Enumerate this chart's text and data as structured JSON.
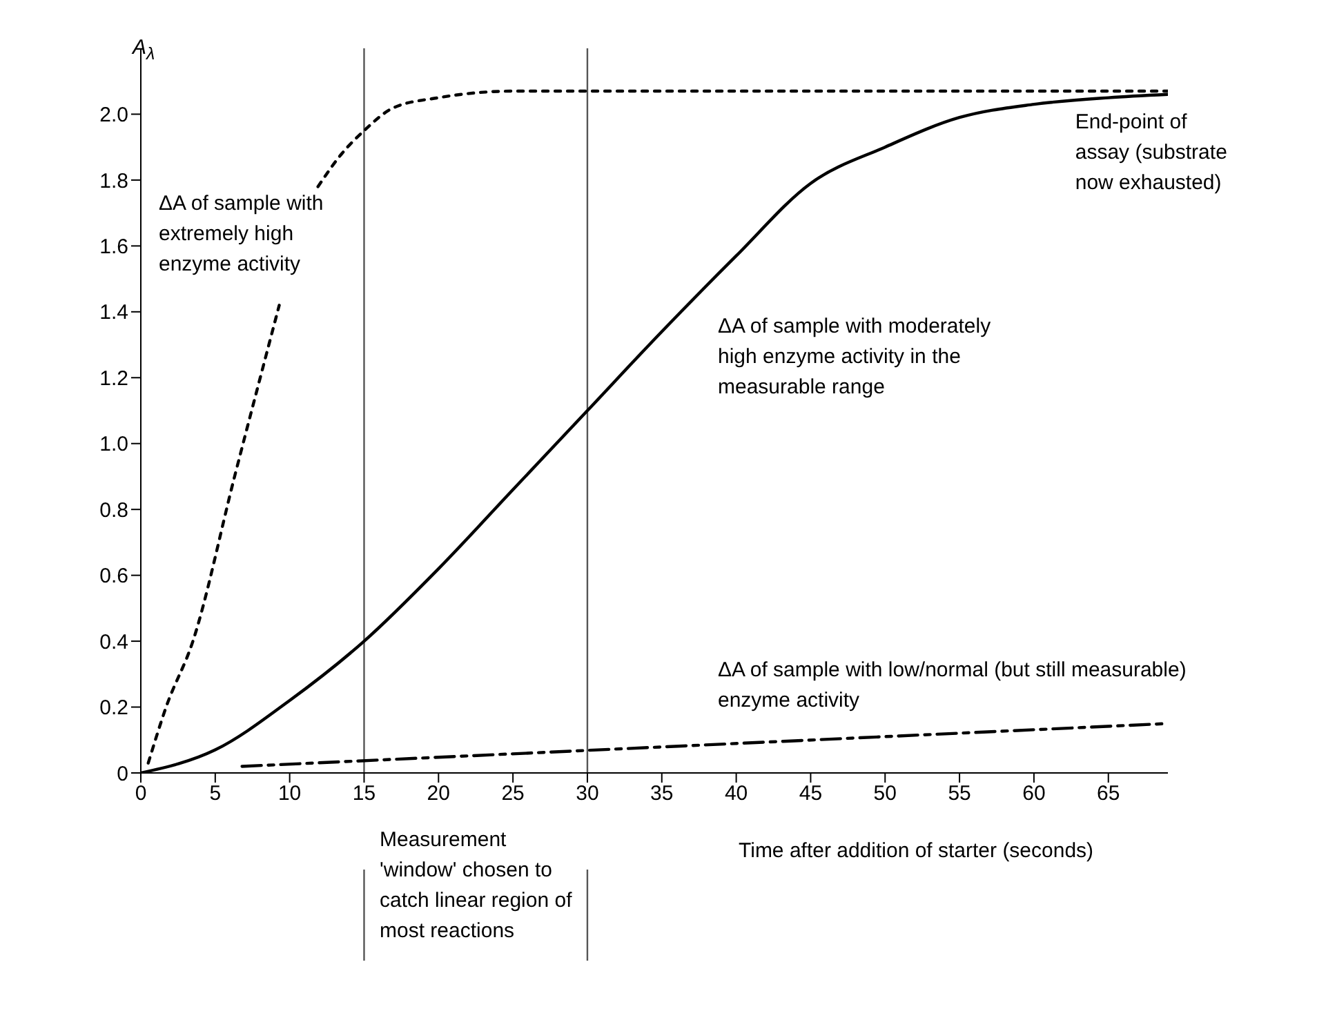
{
  "chart_data": {
    "type": "line",
    "xlabel": "Time after addition of starter (seconds)",
    "ylabel": "A$_{λ}$",
    "xlim": [
      0,
      69
    ],
    "xticks": [
      0,
      5,
      10,
      15,
      20,
      25,
      30,
      35,
      40,
      45,
      50,
      55,
      60,
      65
    ],
    "ylim": [
      0,
      2.2
    ],
    "yticks": [
      0,
      0.2,
      0.4,
      0.6,
      0.8,
      {
        "value": 1,
        "label": "1.0"
      },
      1.2,
      1.4,
      1.6,
      1.8,
      {
        "value": 2,
        "label": "2.0"
      }
    ],
    "grid": false,
    "legend": false,
    "marker": "none",
    "series": [
      {
        "name": "ΔA of sample with extremely high enzyme activity",
        "color": "#000000",
        "line_style": "dotted",
        "x": [
          0.5,
          1.7,
          3.5,
          6.3,
          9.3,
          10.5,
          11.9,
          13.5,
          15,
          17,
          20,
          25,
          30,
          69
        ],
        "values": [
          0.03,
          0.2,
          0.4,
          0.9,
          1.42,
          null,
          1.78,
          1.88,
          1.95,
          2.02,
          2.05,
          2.07,
          2.07,
          2.07
        ]
      },
      {
        "name": "ΔA of sample with moderately high enzyme activity in the measurable range",
        "color": "#000000",
        "line_style": "solid",
        "x": [
          0,
          5,
          10,
          15,
          20,
          25,
          30,
          35,
          40,
          45,
          50,
          55,
          60,
          65,
          69
        ],
        "values": [
          0,
          0.07,
          0.22,
          0.4,
          0.62,
          0.86,
          1.1,
          1.34,
          1.57,
          1.79,
          1.9,
          1.99,
          2.03,
          2.05,
          2.06
        ]
      },
      {
        "name": "ΔA of sample with low/normal (but still measurable) enzyme activity",
        "color": "#000000",
        "line_style": "dashed",
        "x": [
          6.8,
          69
        ],
        "values": [
          0.02,
          0.15
        ]
      }
    ],
    "ref_lines": [
      {
        "axis": "x",
        "value": 15,
        "color": "#555555"
      },
      {
        "axis": "x",
        "value": 30,
        "color": "#555555"
      }
    ],
    "annotations": [
      {
        "text": "End-point of assay (substrate now exhausted)",
        "x": 65,
        "y": 2.06
      },
      "Measurement 'window' chosen to catch linear region of most reactions"
    ]
  }
}
